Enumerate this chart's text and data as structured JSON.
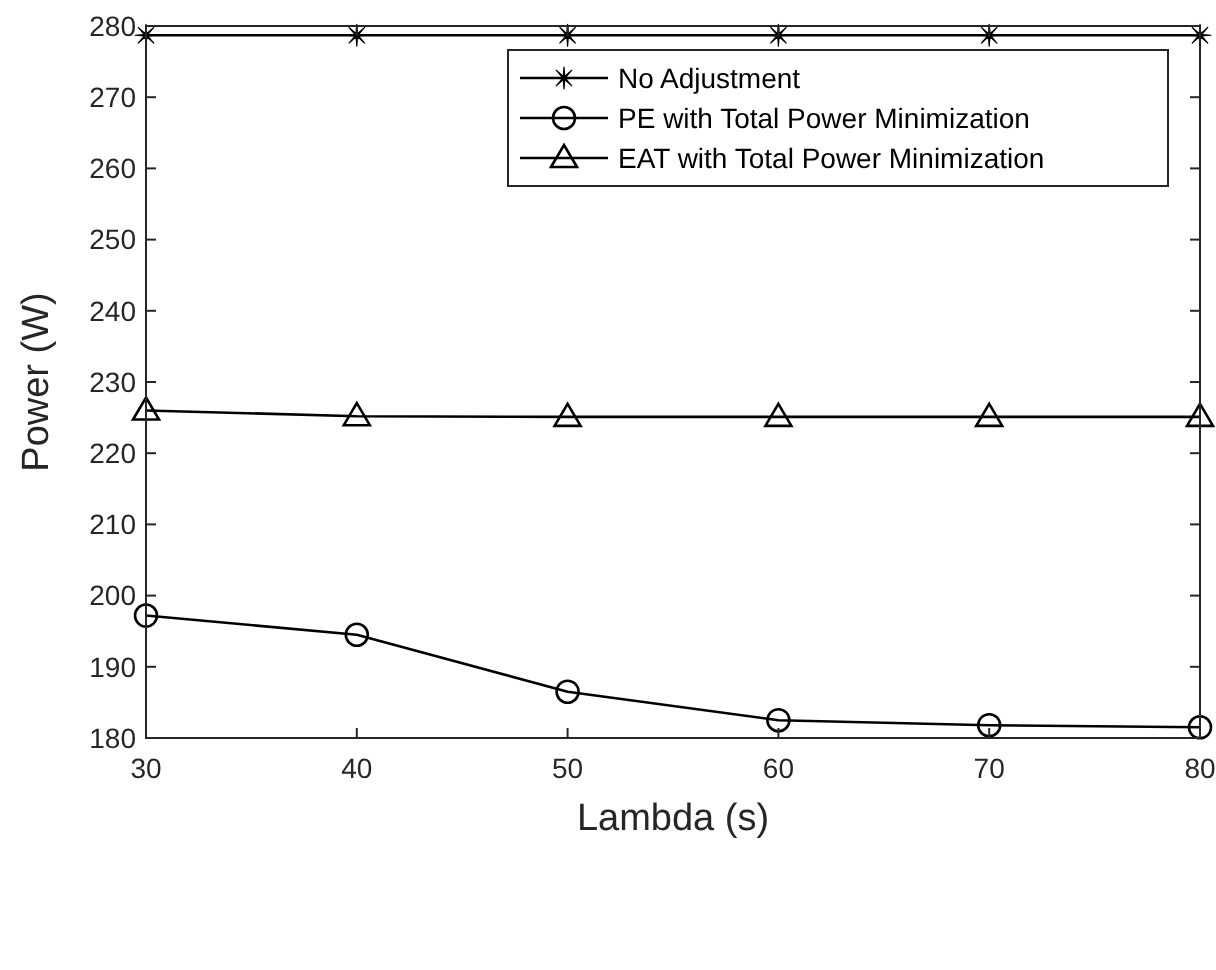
{
  "chart_data": {
    "type": "line",
    "xlabel": "Lambda (s)",
    "ylabel": "Power (W)",
    "x": [
      30,
      40,
      50,
      60,
      70,
      80
    ],
    "xlim": [
      30,
      80
    ],
    "xticks": [
      30,
      40,
      50,
      60,
      70,
      80
    ],
    "ylim": [
      180,
      280
    ],
    "yticks": [
      180,
      190,
      200,
      210,
      220,
      230,
      240,
      250,
      260,
      270,
      280
    ],
    "grid": false,
    "legend": "top right",
    "line_style": "solid",
    "series": [
      {
        "name": "No Adjustment",
        "color": "#000000",
        "marker": "star",
        "values": [
          278.7,
          278.7,
          278.7,
          278.7,
          278.7,
          278.7
        ]
      },
      {
        "name": "PE with Total Power Minimization",
        "color": "#000000",
        "marker": "circle",
        "values": [
          197.2,
          194.5,
          186.5,
          182.5,
          181.8,
          181.5
        ]
      },
      {
        "name": "EAT with Total Power Minimization",
        "color": "#000000",
        "marker": "triangle",
        "values": [
          226,
          225.2,
          225.1,
          225.1,
          225.1,
          225.1
        ]
      }
    ]
  }
}
